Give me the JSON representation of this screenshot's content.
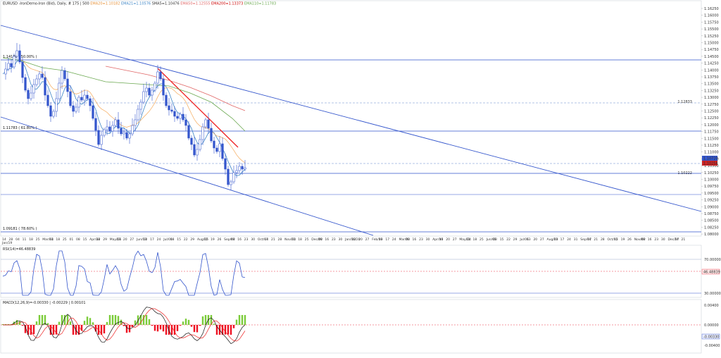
{
  "header": {
    "symbol": "EURUSD",
    "info": "-IronDemo-Iron (Bid), Daily, # 175 | 500",
    "indicators": [
      {
        "text": "EMA20=1.10182",
        "color": "#e69138"
      },
      {
        "text": "EMA21=1.10576",
        "color": "#3d85c6"
      },
      {
        "text": "SMA5=1.10476",
        "color": "#333333"
      },
      {
        "text": "EMA50=1.12555",
        "color": "#e06666"
      },
      {
        "text": "EMA200=1.13373",
        "color": "#cc0000"
      },
      {
        "text": "EMA110=1.11783",
        "color": "#6aa84f"
      }
    ]
  },
  "price_axis": {
    "labels": [
      "1.16250",
      "1.16000",
      "1.15750",
      "1.15500",
      "1.15250",
      "1.15000",
      "1.14750",
      "1.14500",
      "1.14250",
      "1.14000",
      "1.13750",
      "1.13500",
      "1.13250",
      "1.13000",
      "1.12750",
      "1.12500",
      "1.12250",
      "1.12000",
      "1.11750",
      "1.11500",
      "1.11250",
      "1.11000",
      "1.10750",
      "1.10500",
      "1.10250",
      "1.10000",
      "1.09750",
      "1.09500",
      "1.09250",
      "1.09000",
      "1.08750",
      "1.08500",
      "1.08250",
      "1.08000"
    ],
    "current_price": "1.10254",
    "tag_upper": "1.12833",
    "tag_mid": "1.10720",
    "tag_lower": "1.10222"
  },
  "levels": [
    {
      "label": "1.14180 ( 50.00% )"
    },
    {
      "label": "1.11783 ( 61.80% )"
    },
    {
      "label": "1.09181 ( 78.60% )"
    }
  ],
  "date_axis": {
    "labels": [
      "14",
      "28",
      "04",
      "11",
      "18",
      "25",
      "Mar/04",
      "11",
      "18",
      "25",
      "01",
      "08",
      "15",
      "Apr/08",
      "22",
      "29",
      "May/06",
      "13",
      "20",
      "27",
      "Jun/03",
      "10",
      "17",
      "24",
      "Jul/01",
      "08",
      "15",
      "22",
      "29",
      "Aug/05",
      "12",
      "19",
      "26",
      "Sep/02",
      "09",
      "16",
      "23",
      "30",
      "Oct/07",
      "14",
      "21",
      "28",
      "Nov/04",
      "11",
      "18",
      "25",
      "Dec/02",
      "09",
      "16",
      "23",
      "30",
      "Jan/06/20",
      "13",
      "20",
      "27",
      "Feb/03",
      "10",
      "17",
      "24",
      "Mar/02",
      "09",
      "16",
      "23",
      "30",
      "Apr/06",
      "13",
      "20",
      "27",
      "May/04",
      "11",
      "18",
      "25",
      "Jun/01",
      "08",
      "15",
      "22",
      "29",
      "Jul/06",
      "13",
      "20",
      "27",
      "Aug/03",
      "10",
      "17",
      "24",
      "31",
      "Sep/07",
      "14",
      "21",
      "28",
      "Oct/05",
      "12",
      "19",
      "26",
      "Nov/02",
      "09",
      "16",
      "23",
      "30",
      "Dec/07",
      "14",
      "21"
    ]
  },
  "rsi": {
    "title": "RSI(14)=46.48839",
    "labels": [
      "70.00000",
      "46.48839",
      "30.00000"
    ]
  },
  "macd": {
    "title": "MACD(12,26,9)=-0.00330 | -0.00229 | 0.00101",
    "labels": [
      "0.00400",
      "0.00000",
      "-0.00330",
      "-0.00400"
    ]
  },
  "colors": {
    "channel": "#3355cc",
    "trendline": "#ee2222",
    "level_line": "#3355cc",
    "dashed": "#6688cc",
    "candle": "#3355cc",
    "ema_red": "#e06666",
    "ema_green": "#6aa84f",
    "ema_orange": "#f6b26b",
    "ema_blue": "#3d85c6",
    "hist_pos": "#7ccc3a",
    "hist_neg": "#ee1122"
  }
}
